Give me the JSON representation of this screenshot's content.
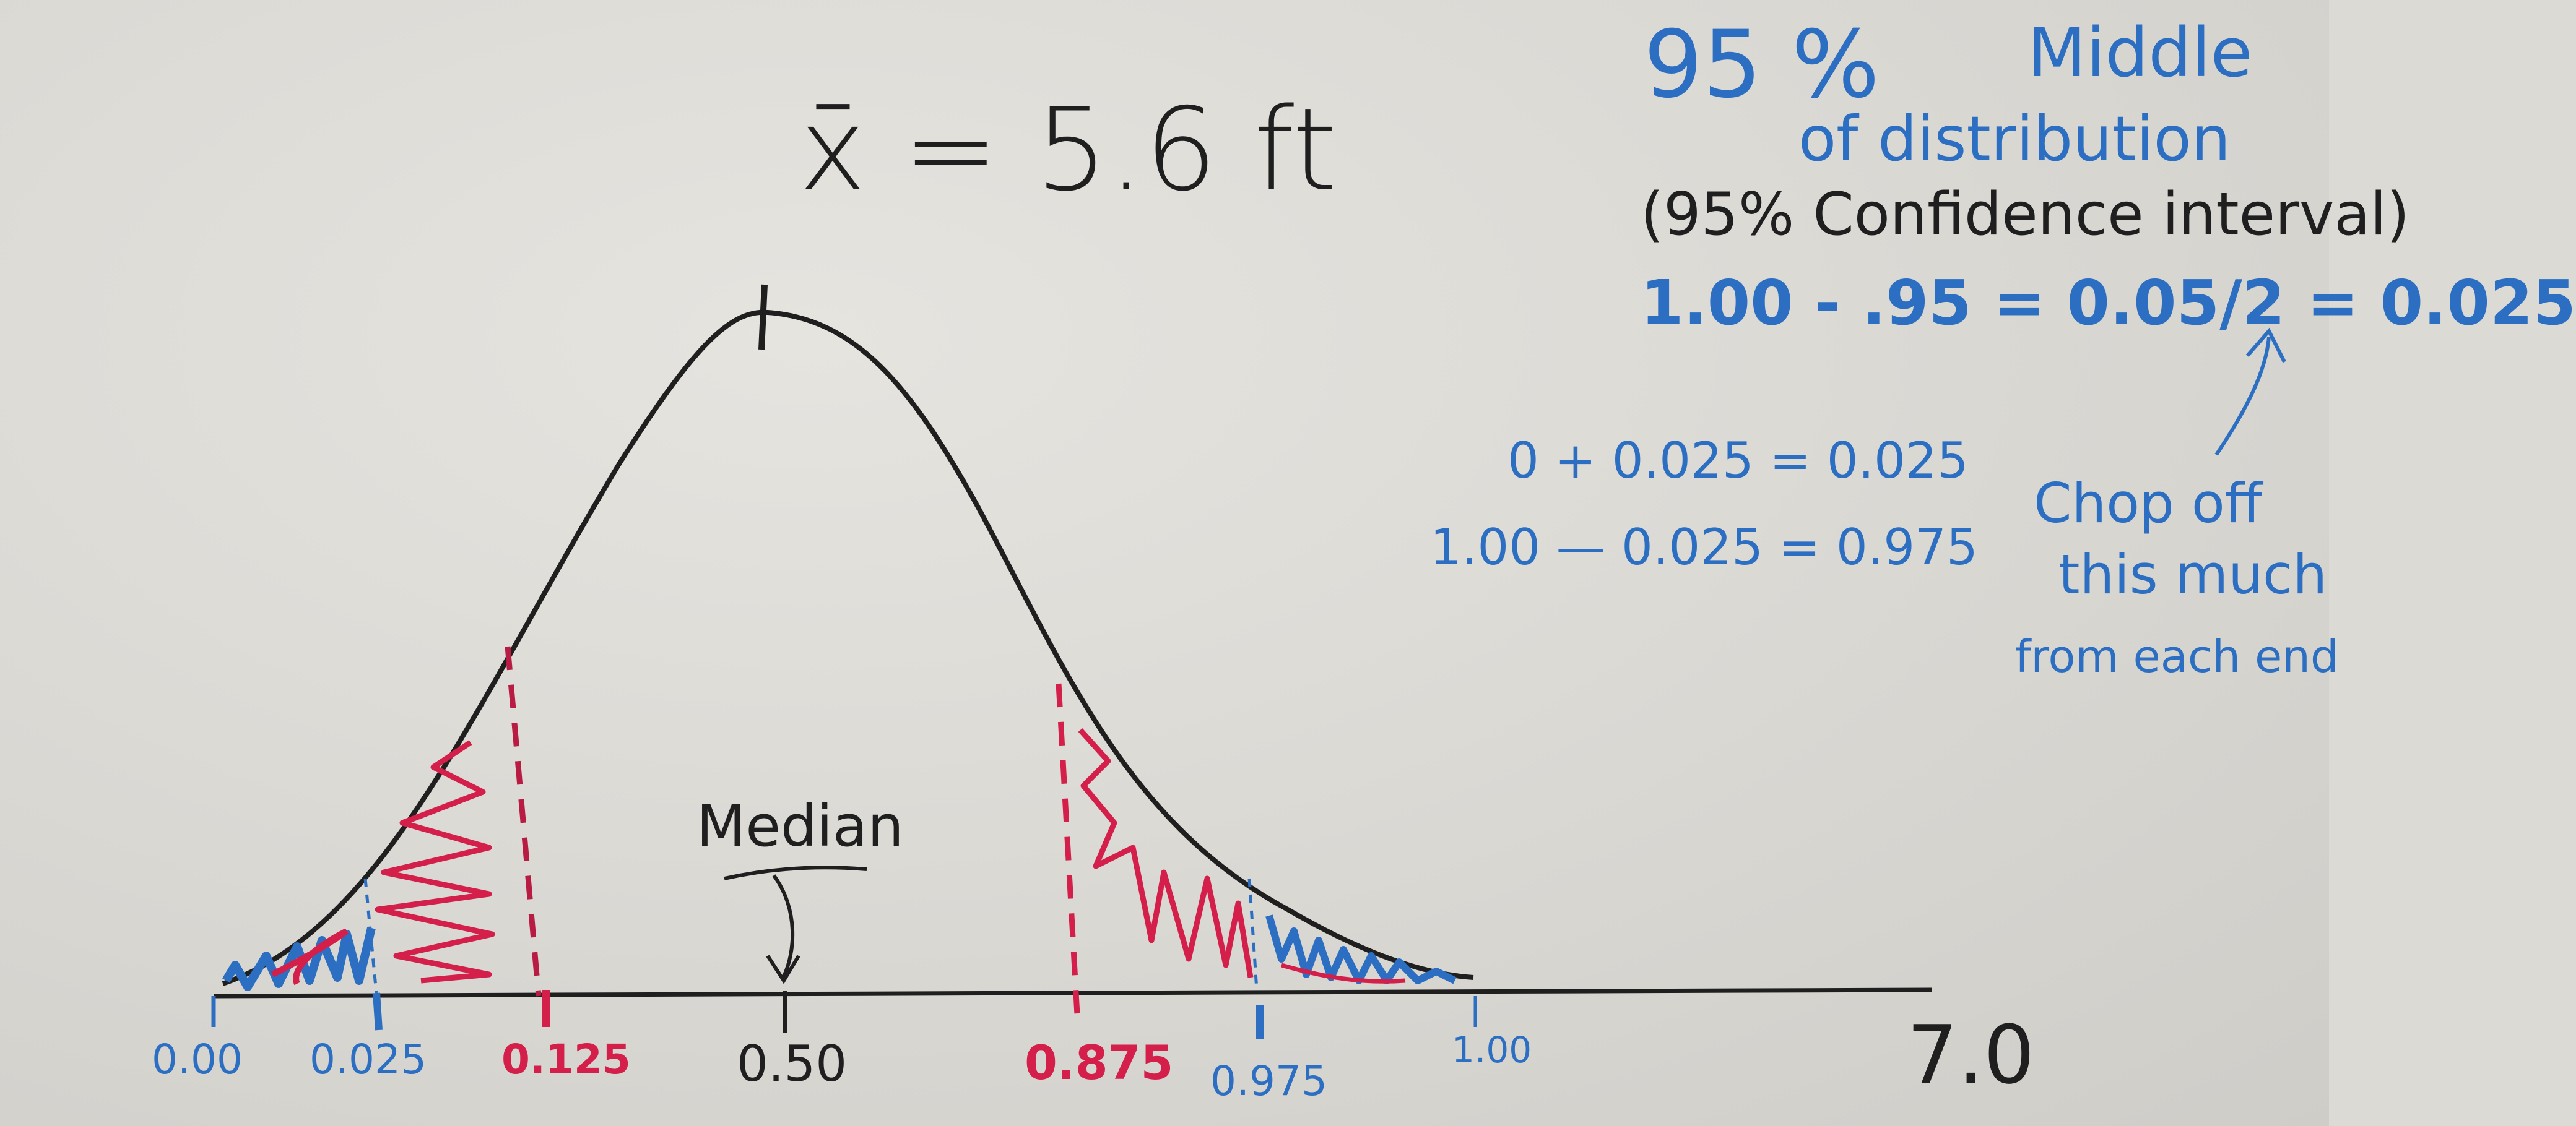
{
  "whiteboard": {
    "mean_equation": "x̄ = 5.6 ft",
    "median_label": "Median",
    "notes": {
      "percent": "95 %",
      "middle": "Middle",
      "of_distribution": "of distribution",
      "confidence_interval": "(95% Confidence interval)",
      "calculation": "1.00 - .95 = 0.05/2 = 0.025",
      "eq_lower": "0 + 0.025 = 0.025",
      "eq_upper": "1.00 — 0.025 = 0.975",
      "chop_line1": "Chop off",
      "chop_line2": "this much",
      "chop_line3": "from each end"
    },
    "axis_ticks": {
      "t000": "0.00",
      "t025": "0.025",
      "t125": "0.125",
      "t050": "0.50",
      "t875": "0.875",
      "t975": "0.975",
      "t100": "1.00",
      "t7": "7.0"
    },
    "colors": {
      "marker_black": "#1f1f1f",
      "marker_blue": "#2c6fc2",
      "marker_red": "#d31f4a",
      "board": "#dcdad5"
    }
  }
}
